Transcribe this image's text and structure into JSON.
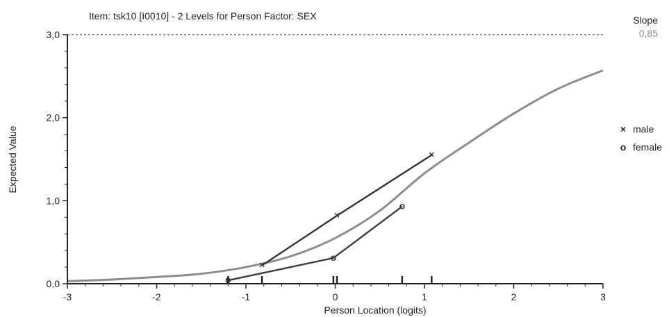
{
  "chart_data": {
    "type": "line",
    "title": "Item: tsk10 [I0010] - 2 Levels for Person Factor: SEX",
    "xlabel": "Person Location (logits)",
    "ylabel": "Expected Value",
    "xlim": [
      -3,
      3
    ],
    "ylim": [
      0,
      3
    ],
    "x_ticks": [
      -3,
      -2,
      -1,
      0,
      1,
      2,
      3
    ],
    "x_tick_labels": [
      "-3",
      "-2",
      "-1",
      "0",
      "1",
      "2",
      "3"
    ],
    "y_ticks": [
      0,
      1,
      2,
      3
    ],
    "y_tick_labels": [
      "0,0",
      "1,0",
      "2,0",
      "3,0"
    ],
    "slope_label": "Slope",
    "slope_value": "0,85",
    "reference_line_y": 3,
    "expected_curve": {
      "x": [
        -3,
        -2.5,
        -2,
        -1.5,
        -1,
        -0.5,
        0,
        0.5,
        1,
        1.5,
        2,
        2.5,
        3
      ],
      "y": [
        0.03,
        0.05,
        0.08,
        0.12,
        0.2,
        0.33,
        0.55,
        0.88,
        1.33,
        1.7,
        2.05,
        2.35,
        2.57
      ]
    },
    "series": [
      {
        "name": "male",
        "marker": "×",
        "x": [
          -0.82,
          0.02,
          1.08
        ],
        "y": [
          0.22,
          0.82,
          1.55
        ]
      },
      {
        "name": "female",
        "marker": "o",
        "x": [
          -1.2,
          -0.02,
          0.75
        ],
        "y": [
          0.04,
          0.31,
          0.93
        ]
      }
    ],
    "group_location_ticks": [
      -1.2,
      -0.82,
      -0.02,
      0.02,
      0.75,
      1.08
    ],
    "colors": {
      "expected_curve": "#8c8c8c",
      "male": "#333333",
      "female": "#3c3c3c",
      "axis": "#222222",
      "reference_line": "#222222"
    },
    "legend_position": "right"
  }
}
